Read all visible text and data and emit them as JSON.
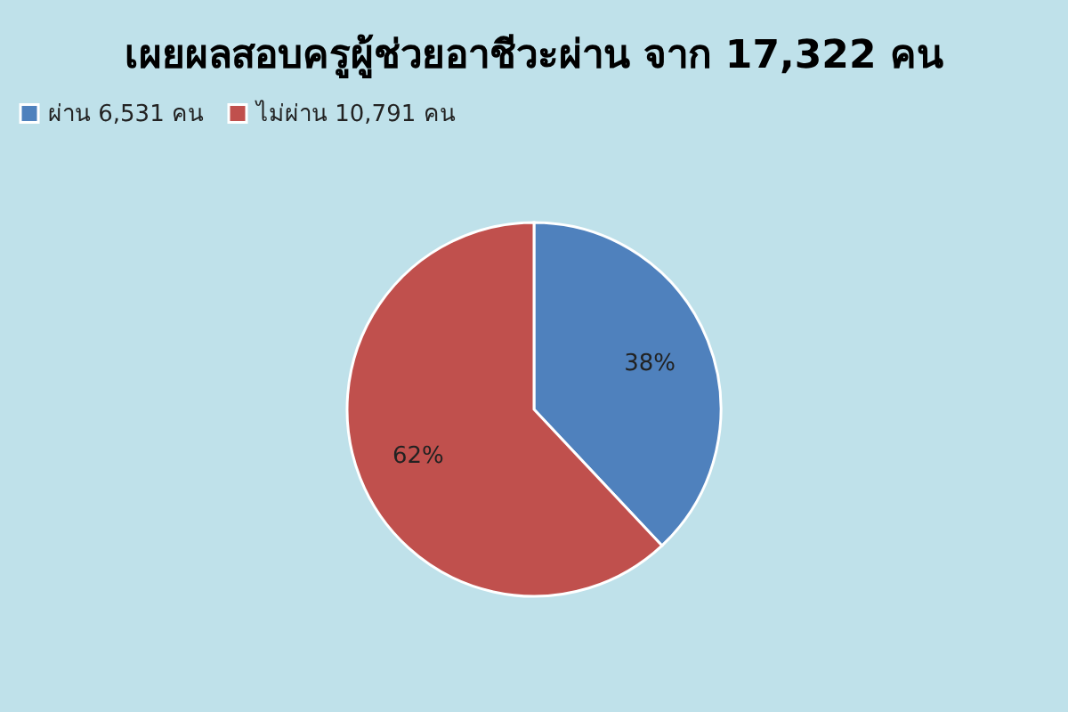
{
  "chart_data": {
    "type": "pie",
    "title": "เผยผลสอบครูผู้ช่วยอาชีวะผ่าน จาก 17,322 คน",
    "categories": [
      "ผ่าน 6,531 คน",
      "ไม่ผ่าน 10,791 คน"
    ],
    "values": [
      38,
      62
    ],
    "colors": [
      "#4f81bd",
      "#c0504d"
    ],
    "value_labels": [
      "38%",
      "62%"
    ],
    "legend": "top"
  }
}
